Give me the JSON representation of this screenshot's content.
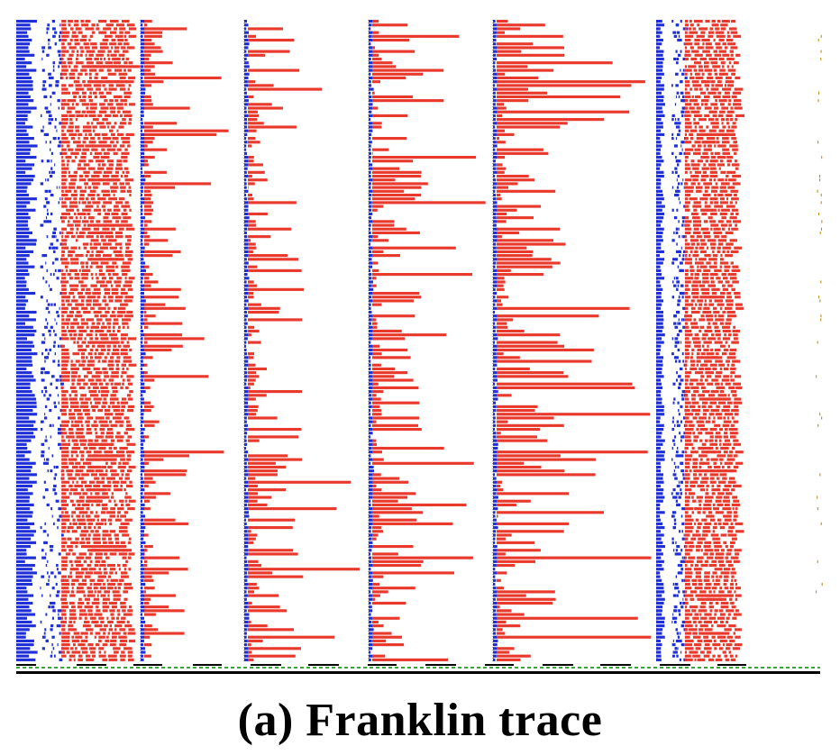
{
  "caption": "(a) Franklin trace",
  "colors": {
    "cpu": "#1f2fd6",
    "io": "#e8392c",
    "divider": "#555555",
    "baseline": "#000000",
    "dashed": "#3aa63a",
    "sparse": "#b8860b"
  },
  "chart_data": {
    "type": "trace",
    "title": "",
    "legend": "none",
    "grid": false,
    "row_count": 170,
    "panels": [
      {
        "id": "p1",
        "kind": "dense",
        "blue_max": 0.18,
        "red_max": 0.75,
        "density": 0.92
      },
      {
        "id": "p2",
        "kind": "sparse",
        "blue_max": 0.03,
        "red_max": 0.95,
        "density": 0.35
      },
      {
        "id": "p3",
        "kind": "sparse",
        "blue_max": 0.03,
        "red_max": 0.95,
        "density": 0.45
      },
      {
        "id": "p4",
        "kind": "sparse",
        "blue_max": 0.03,
        "red_max": 0.95,
        "density": 0.55
      },
      {
        "id": "p5",
        "kind": "sparse",
        "blue_max": 0.03,
        "red_max": 0.98,
        "density": 0.6
      },
      {
        "id": "p6",
        "kind": "dense",
        "blue_max": 0.12,
        "red_max": 0.85,
        "density": 0.95
      },
      {
        "id": "p7",
        "kind": "dots",
        "blue_max": 0.0,
        "red_max": 0.05,
        "density": 0.25
      }
    ]
  }
}
